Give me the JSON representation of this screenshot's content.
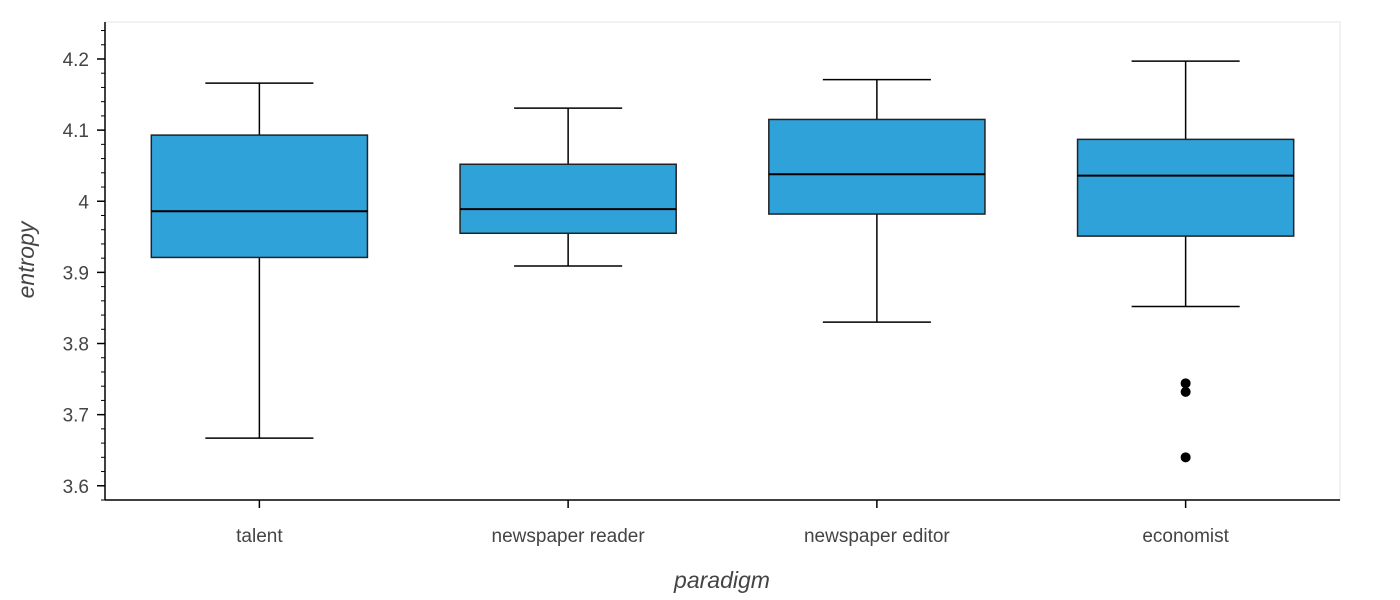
{
  "chart_data": {
    "type": "box",
    "xlabel": "paradigm",
    "ylabel": "entropy",
    "ylim": [
      3.58,
      4.252
    ],
    "y_ticks": [
      3.6,
      3.7,
      3.8,
      3.9,
      4.0,
      4.1,
      4.2
    ],
    "y_tick_labels": [
      "3.6",
      "3.7",
      "3.8",
      "3.9",
      "4",
      "4.1",
      "4.2"
    ],
    "y_minor_step": 0.02,
    "grid": false,
    "box_color": "#30a2da",
    "categories": [
      "talent",
      "newspaper reader",
      "newspaper editor",
      "economist"
    ],
    "boxes": [
      {
        "category": "talent",
        "whisker_low": 3.667,
        "q1": 3.921,
        "median": 3.986,
        "q3": 4.093,
        "whisker_high": 4.166,
        "outliers": []
      },
      {
        "category": "newspaper reader",
        "whisker_low": 3.909,
        "q1": 3.955,
        "median": 3.989,
        "q3": 4.052,
        "whisker_high": 4.131,
        "outliers": []
      },
      {
        "category": "newspaper editor",
        "whisker_low": 3.83,
        "q1": 3.982,
        "median": 4.038,
        "q3": 4.115,
        "whisker_high": 4.171,
        "outliers": []
      },
      {
        "category": "economist",
        "whisker_low": 3.852,
        "q1": 3.951,
        "median": 4.036,
        "q3": 4.087,
        "whisker_high": 4.197,
        "outliers": [
          3.744,
          3.732,
          3.64
        ]
      }
    ]
  }
}
